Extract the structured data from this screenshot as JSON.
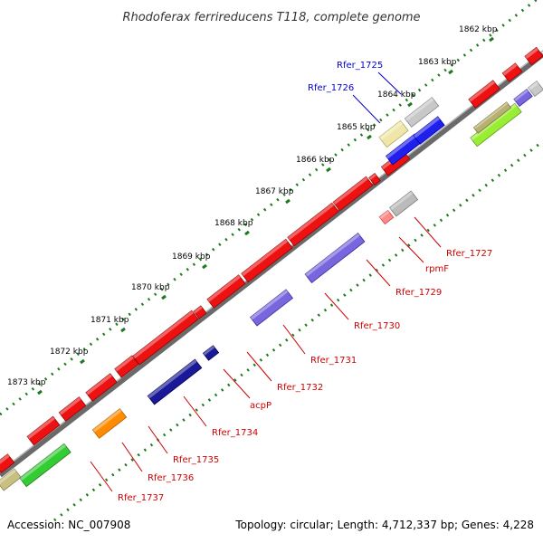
{
  "title": "Rhodoferax ferrireducens T118, complete genome",
  "footer": {
    "accession": "Accession: NC_007908",
    "stats": "Topology: circular; Length: 4,712,337 bp; Genes: 4,228"
  },
  "ticks": [
    "1862 kbp",
    "1863 kbp",
    "1864 kbp",
    "1865 kbp",
    "1866 kbp",
    "1867 kbp",
    "1868 kbp",
    "1869 kbp",
    "1870 kbp",
    "1871 kbp",
    "1872 kbp",
    "1873 kbp"
  ],
  "gene_labels": [
    {
      "text": "Rfer_1725",
      "color": "#0000cc"
    },
    {
      "text": "Rfer_1726",
      "color": "#0000cc"
    },
    {
      "text": "Rfer_1727",
      "color": "#cc0000"
    },
    {
      "text": "rpmF",
      "color": "#cc0000"
    },
    {
      "text": "Rfer_1729",
      "color": "#cc0000"
    },
    {
      "text": "Rfer_1730",
      "color": "#cc0000"
    },
    {
      "text": "Rfer_1731",
      "color": "#cc0000"
    },
    {
      "text": "Rfer_1732",
      "color": "#cc0000"
    },
    {
      "text": "acpP",
      "color": "#cc0000"
    },
    {
      "text": "Rfer_1734",
      "color": "#cc0000"
    },
    {
      "text": "Rfer_1735",
      "color": "#cc0000"
    },
    {
      "text": "Rfer_1736",
      "color": "#cc0000"
    },
    {
      "text": "Rfer_1737",
      "color": "#cc0000"
    }
  ]
}
